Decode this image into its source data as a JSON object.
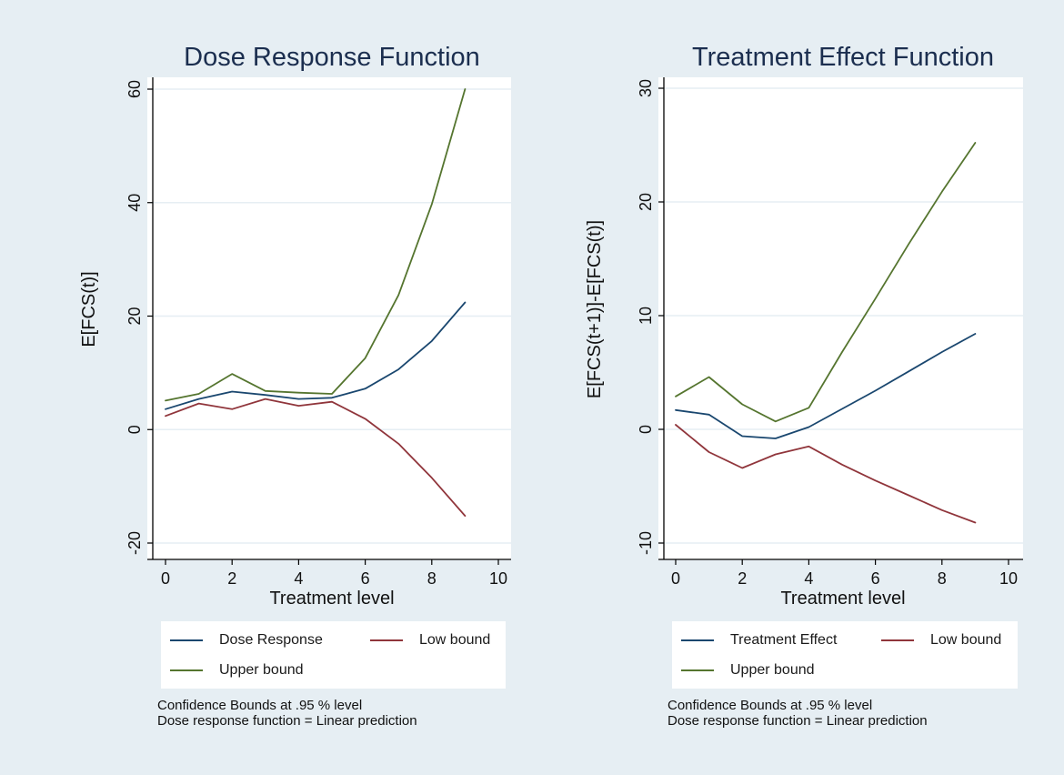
{
  "colors": {
    "background": "#e6eef3",
    "plot_background": "#ffffff",
    "grid": "#e6eef3",
    "axis": "#000000",
    "title": "#1b2e4f",
    "estimate": "#1a476f",
    "lower": "#90353b",
    "upper": "#55752f"
  },
  "chart_data": [
    {
      "type": "line",
      "title": "Dose Response Function",
      "xlabel": "Treatment level",
      "ylabel": "E[FCS(t)]",
      "xlim": [
        0,
        10
      ],
      "ylim": [
        -20,
        60
      ],
      "xticks": [
        0,
        2,
        4,
        6,
        8,
        10
      ],
      "yticks": [
        -20,
        0,
        20,
        40,
        60
      ],
      "grid": true,
      "x": [
        0,
        1,
        2,
        3,
        4,
        5,
        6,
        7,
        8,
        9
      ],
      "series": [
        {
          "key": "estimate",
          "name": "Dose Response",
          "values": [
            3.6,
            5.4,
            6.7,
            6.1,
            5.4,
            5.6,
            7.2,
            10.6,
            15.6,
            22.4
          ]
        },
        {
          "key": "lower",
          "name": "Low bound",
          "values": [
            2.4,
            4.6,
            3.6,
            5.4,
            4.2,
            4.9,
            1.9,
            -2.5,
            -8.5,
            -15.2
          ]
        },
        {
          "key": "upper",
          "name": "Upper bound",
          "values": [
            5.1,
            6.3,
            9.8,
            6.8,
            6.5,
            6.3,
            12.6,
            23.7,
            39.7,
            60.0
          ]
        }
      ],
      "notes": [
        "Confidence Bounds at .95 % level",
        "Dose response function = Linear prediction"
      ]
    },
    {
      "type": "line",
      "title": "Treatment Effect Function",
      "xlabel": "Treatment level",
      "ylabel": "E[FCS(t+1)]-E[FCS(t)]",
      "xlim": [
        0,
        10
      ],
      "ylim": [
        -10,
        30
      ],
      "xticks": [
        0,
        2,
        4,
        6,
        8,
        10
      ],
      "yticks": [
        -10,
        0,
        10,
        20,
        30
      ],
      "grid": true,
      "x": [
        0,
        1,
        2,
        3,
        4,
        5,
        6,
        7,
        8,
        9
      ],
      "series": [
        {
          "key": "estimate",
          "name": "Treatment Effect",
          "values": [
            1.7,
            1.3,
            -0.6,
            -0.8,
            0.2,
            1.8,
            3.4,
            5.1,
            6.8,
            8.4
          ]
        },
        {
          "key": "lower",
          "name": "Low bound",
          "values": [
            0.4,
            -2.0,
            -3.4,
            -2.2,
            -1.5,
            -3.1,
            -4.5,
            -5.8,
            -7.1,
            -8.2
          ]
        },
        {
          "key": "upper",
          "name": "Upper bound",
          "values": [
            2.9,
            4.6,
            2.2,
            0.7,
            1.9,
            6.8,
            11.5,
            16.3,
            20.9,
            25.2
          ]
        }
      ],
      "notes": [
        "Confidence Bounds at .95 % level",
        "Dose response function = Linear prediction"
      ]
    }
  ]
}
